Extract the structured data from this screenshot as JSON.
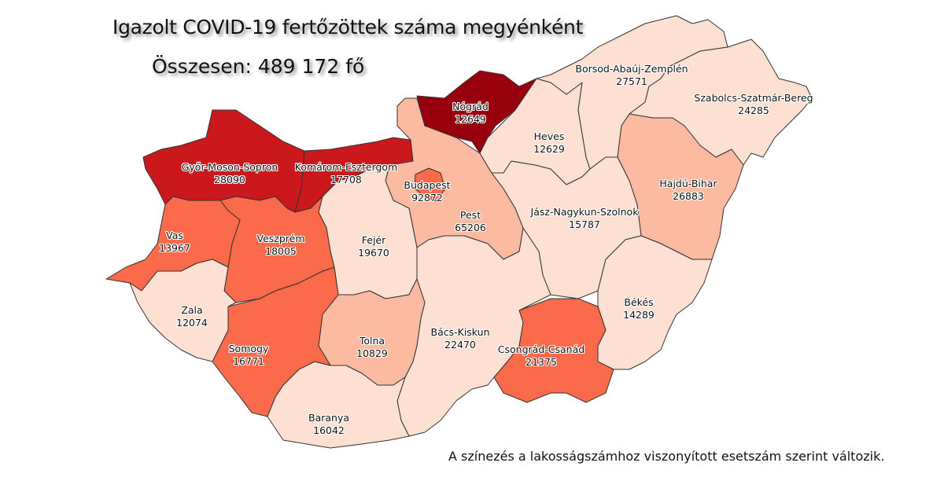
{
  "title": "Igazolt COVID-19 fertőzöttek száma megyénként",
  "total": "Összesen: 489 172 fő",
  "note": "A színezés a lakosságszámhoz viszonyított esetszám szerint változik.",
  "palette": {
    "c1": "#fee0d2",
    "c2": "#fcbba1",
    "c3": "#fb6a4a",
    "c4": "#cb181d",
    "c5": "#99000d"
  },
  "counties": [
    {
      "id": "gyor",
      "name": "Győr-Moson-Sopron",
      "cases": "28090",
      "cls": "c4"
    },
    {
      "id": "komarom",
      "name": "Komárom-Esztergom",
      "cases": "17708",
      "cls": "c4"
    },
    {
      "id": "nograd",
      "name": "Nógrád",
      "cases": "12649",
      "cls": "c5"
    },
    {
      "id": "pest",
      "name": "Pest",
      "cases": "65206",
      "cls": "c2"
    },
    {
      "id": "budapest",
      "name": "Budapest",
      "cases": "92872",
      "cls": "c3"
    },
    {
      "id": "heves",
      "name": "Heves",
      "cases": "12629",
      "cls": "c1"
    },
    {
      "id": "borsod",
      "name": "Borsod-Abaúj-Zemplén",
      "cases": "27571",
      "cls": "c1"
    },
    {
      "id": "szabolcs",
      "name": "Szabolcs-Szatmár-Bereg",
      "cases": "24285",
      "cls": "c1"
    },
    {
      "id": "hajdu",
      "name": "Hajdú-Bihar",
      "cases": "26883",
      "cls": "c2"
    },
    {
      "id": "jnsz",
      "name": "Jász-Nagykun-Szolnok",
      "cases": "15787",
      "cls": "c1"
    },
    {
      "id": "bekes",
      "name": "Békés",
      "cases": "14289",
      "cls": "c1"
    },
    {
      "id": "csongrad",
      "name": "Csongrád-Csanád",
      "cases": "21375",
      "cls": "c3"
    },
    {
      "id": "bacs",
      "name": "Bács-Kiskun",
      "cases": "22470",
      "cls": "c1"
    },
    {
      "id": "fejer",
      "name": "Fejér",
      "cases": "19670",
      "cls": "c1"
    },
    {
      "id": "tolna",
      "name": "Tolna",
      "cases": "10829",
      "cls": "c2"
    },
    {
      "id": "baranya",
      "name": "Baranya",
      "cases": "16042",
      "cls": "c1"
    },
    {
      "id": "somogy",
      "name": "Somogy",
      "cases": "16771",
      "cls": "c3"
    },
    {
      "id": "veszprem",
      "name": "Veszprém",
      "cases": "18005",
      "cls": "c3"
    },
    {
      "id": "vas",
      "name": "Vas",
      "cases": "13967",
      "cls": "c3"
    },
    {
      "id": "zala",
      "name": "Zala",
      "cases": "12074",
      "cls": "c1"
    }
  ]
}
